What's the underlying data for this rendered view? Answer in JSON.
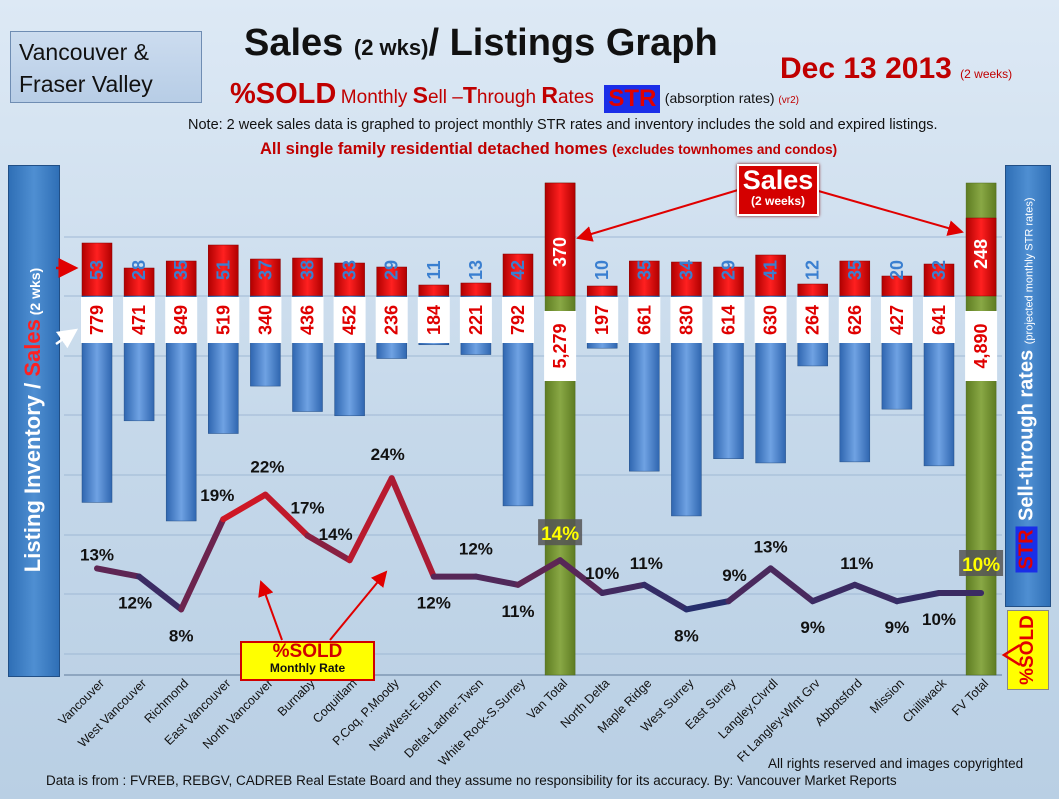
{
  "region": {
    "line1": "Vancouver &",
    "line2": "Fraser Valley"
  },
  "title": {
    "main": "Sales",
    "qualifier": "(2 wks)",
    "rest": "/ Listings Graph"
  },
  "date": {
    "text": "Dec 13 2013",
    "qualifier": "(2 weeks)"
  },
  "subtitle": {
    "sold": "%SOLD",
    "monthly": "Monthly",
    "s": "S",
    "ell": "ell ",
    "dash": "–",
    "t": "T",
    "hrough": "hrough ",
    "r": "R",
    "ates": "ates",
    "str": "STR",
    "absorption": "(absorption rates)",
    "version": "(vr2)"
  },
  "note": "Note: 2 week sales data is graphed to project monthly STR rates and inventory includes the sold and expired listings.",
  "detached": {
    "main": "All single family residential detached homes",
    "qualifier": "(excludes townhomes and condos)"
  },
  "left_axis": {
    "part1": "Listing Inventory / ",
    "part2": "Sales",
    "part3": " (2 wks)"
  },
  "right_axis": {
    "str": "STR",
    "main": " Sell-through rates ",
    "qualifier": "(projected monthly STR rates)"
  },
  "sold_right": "%SOLD",
  "sold_callout": {
    "line1": "%SOLD",
    "line2": "Monthly Rate"
  },
  "sales_callout": {
    "line1": "Sales",
    "line2": "(2 weeks)"
  },
  "footer": {
    "rights": "All rights reserved and  images copyrighted",
    "source": "Data is  from : FVREB, REBGV, CADREB Real Estate Board and they assume no responsibility  for its accuracy. By: Vancouver Market Reports"
  },
  "colors": {
    "sales_bar": "#e00000",
    "listing_bar": "#3f7fcc",
    "total_bar": "#6f8f2e",
    "label_box": "#ffffff",
    "line_high": "#ff0000",
    "line_low": "#1f2f6f"
  },
  "chart_data": {
    "type": "bar",
    "categories": [
      "Vancouver",
      "West Vancouver",
      "Richmond",
      "East Vancouver",
      "North Vancouver",
      "Burnaby",
      "Coquitlam",
      "P.Coq, P.Moody",
      "NewWest-E.Burn",
      "Delta-Ladner-Twsn",
      "White Rock-S.Surrey",
      "Van Total",
      "North Delta",
      "Maple Ridge",
      "West Surrey",
      "East Surrey",
      "Langley,Clvrdl",
      "Ft Langley-Wlnt Grv",
      "Abbotsford",
      "Mission",
      "Chilliwack",
      "FV Total"
    ],
    "series": [
      {
        "name": "Sales",
        "values": [
          53,
          28,
          35,
          51,
          37,
          38,
          33,
          29,
          11,
          13,
          42,
          370,
          10,
          35,
          34,
          29,
          41,
          12,
          35,
          20,
          32,
          248
        ]
      },
      {
        "name": "Listing Inventory",
        "values": [
          779,
          471,
          849,
          519,
          340,
          436,
          452,
          236,
          184,
          221,
          792,
          5279,
          197,
          661,
          830,
          614,
          630,
          264,
          626,
          427,
          641,
          4890
        ]
      },
      {
        "name": "%SOLD",
        "values": [
          13,
          12,
          8,
          19,
          22,
          17,
          14,
          24,
          12,
          12,
          11,
          14,
          10,
          11,
          8,
          9,
          13,
          9,
          11,
          9,
          10,
          10
        ]
      }
    ],
    "sales_labels": [
      "53",
      "28",
      "35",
      "51",
      "37",
      "38",
      "33",
      "29",
      "11",
      "13",
      "42",
      "370",
      "10",
      "35",
      "34",
      "29",
      "41",
      "12",
      "35",
      "20",
      "32",
      "248"
    ],
    "listing_labels": [
      "779",
      "471",
      "849",
      "519",
      "340",
      "436",
      "452",
      "236",
      "184",
      "221",
      "792",
      "5,279",
      "197",
      "661",
      "830",
      "614",
      "630",
      "264",
      "626",
      "427",
      "641",
      "4,890"
    ],
    "percent_labels": [
      "13%",
      "12%",
      "8%",
      "19%",
      "22%",
      "17%",
      "14%",
      "24%",
      "12%",
      "12%",
      "11%",
      "14%",
      "10%",
      "11%",
      "8%",
      "9%",
      "13%",
      "9%",
      "11%",
      "9%",
      "10%",
      "10%"
    ],
    "total_indices": [
      11,
      21
    ],
    "grid": true
  }
}
